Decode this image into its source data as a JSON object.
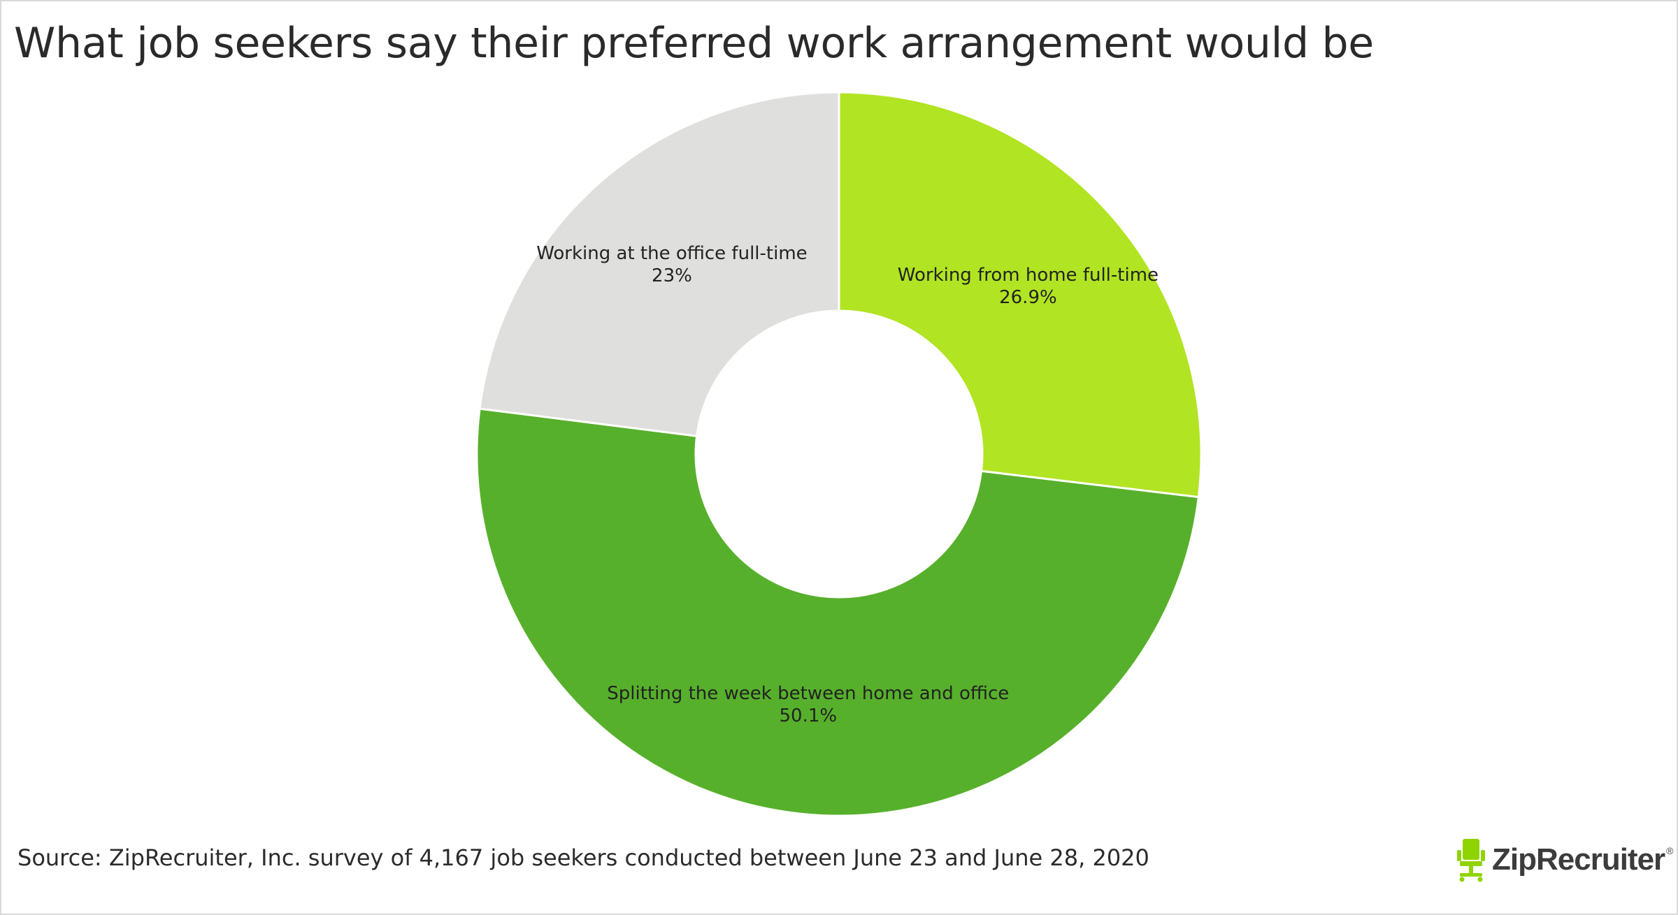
{
  "title": "What job seekers say their preferred work arrangement would be",
  "source": "Source: ZipRecruiter, Inc. survey of 4,167 job seekers conducted between June 23 and June 28, 2020",
  "logo": {
    "text": "ZipRecruiter",
    "registered": "®",
    "icon": "office-chair-icon",
    "icon_color": "#8fd400"
  },
  "chart_data": {
    "type": "pie",
    "donut": true,
    "start_angle_deg": 0,
    "direction": "clockwise",
    "slices": [
      {
        "label": "Working from home full-time",
        "value": 26.9,
        "display": "26.9%",
        "color": "#b1e422"
      },
      {
        "label": "Splitting the week between home and office",
        "value": 50.1,
        "display": "50.1%",
        "color": "#57b02b"
      },
      {
        "label": "Working at the office full-time",
        "value": 23,
        "display": "23%",
        "color": "#dfe0de"
      }
    ],
    "slice_border_color": "#ffffff"
  }
}
